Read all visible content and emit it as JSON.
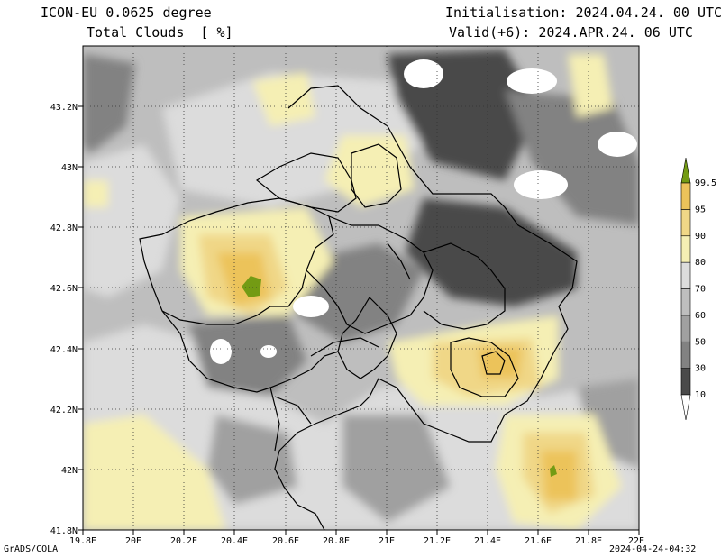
{
  "header": {
    "model": "ICON-EU 0.0625 degree",
    "field": "Total Clouds  [ %]",
    "init": "Initialisation: 2024.04.24. 00 UTC",
    "valid": "Valid(+6): 2024.APR.24. 06 UTC"
  },
  "footer": {
    "credit": "GrADS/COLA",
    "timestamp": "2024-04-24-04:32"
  },
  "map": {
    "lat_range": [
      41.8,
      43.4
    ],
    "lon_range": [
      19.8,
      22.0
    ],
    "lat_ticks": [
      "41.8N",
      "42N",
      "42.2N",
      "42.4N",
      "42.6N",
      "42.8N",
      "43N",
      "43.2N"
    ],
    "lon_ticks": [
      "19.8E",
      "20E",
      "20.2E",
      "20.4E",
      "20.6E",
      "20.8E",
      "21E",
      "21.2E",
      "21.4E",
      "21.6E",
      "21.8E",
      "22E"
    ],
    "grid": true
  },
  "colorbar": {
    "labels": [
      "10",
      "30",
      "50",
      "60",
      "70",
      "80",
      "90",
      "95",
      "99.5"
    ],
    "colors": [
      "#4a4a4a",
      "#828282",
      "#a0a0a0",
      "#bebebe",
      "#dcdcdc",
      "#f5efb4",
      "#f0d787",
      "#ecc35a",
      "#e6b432",
      "#739b14"
    ]
  }
}
